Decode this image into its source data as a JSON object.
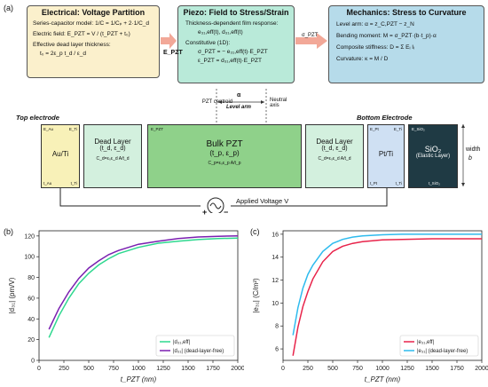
{
  "panel_a": {
    "label": "(a)",
    "electrical": {
      "title": "Electrical: Voltage Partition",
      "lines": [
        "Series-capacitor model: 1/C = 1/Cₚ + 2·1/C_d",
        "Electric field: E_PZT = V / (t_PZT + t₀)",
        "Effective dead layer thickness:",
        "t₀ = 2ε_p t_d / ε_d"
      ],
      "bg": "#fbf0cc"
    },
    "piezo": {
      "title": "Piezo: Field to Stress/Strain",
      "lines": [
        "Thickness-dependent film response:",
        "e₃₁,eff(t), d₃₁,eff(t)",
        "Constitutive (1D):",
        "σ_PZT = − e₃₁,eff(t)·E_PZT",
        "ε_PZT = d₃₁,eff(t)·E_PZT"
      ],
      "bg": "#b9ead9"
    },
    "mechanics": {
      "title": "Mechanics: Stress to Curvature",
      "lines": [
        "Level arm: α = z_C,PZT − z_N",
        "Bending moment: M = σ_PZT·(b·t_p)·α",
        "Composite stiffness: D = Σ Eᵢ Iᵢ",
        "Curvature: κ = M / D"
      ],
      "bg": "#b6dbea"
    },
    "arrow_labels": {
      "e_pzt": "E_PZT",
      "sigma_pzt": "σ_PZT"
    },
    "annotations": {
      "pzt_centroid": "PZT centroid",
      "alpha": "α",
      "level_arm": "Level arm",
      "neutral_axis": "Neutral axis",
      "top_electrode": "Top electrode",
      "bottom_electrode": "Bottom Electrode",
      "width": "width",
      "width_symbol": "b",
      "applied_voltage": "Applied Voltage V",
      "plus": "+",
      "minus": "−"
    },
    "layers": [
      {
        "name": "Au/Ti",
        "sub": "",
        "tl": "E_Au",
        "tr": "E_Ti",
        "bl": "t_Au",
        "br": "t_Ti",
        "color": "#f8f1b8"
      },
      {
        "name": "Dead Layer",
        "sub": "(t_d, ε_d)",
        "formula": "C_d=ε₀ε_d A/t_d",
        "color": "#d3f0de"
      },
      {
        "name": "Bulk PZT",
        "sub": "(t_p, ε_p)",
        "formula": "C_p=ε₀ε_p A/t_p",
        "tl": "E_PZT",
        "color": "#8fd18a"
      },
      {
        "name": "Dead Layer",
        "sub": "(t_d, ε_d)",
        "formula": "C_d=ε₀ε_d A/t_d",
        "color": "#d3f0de"
      },
      {
        "name": "Pt/Ti",
        "sub": "",
        "tl": "E_Pt",
        "tr": "E_Ti",
        "bl": "t_Pt",
        "br": "t_Ti",
        "color": "#cfe0f3"
      },
      {
        "name": "SiO₂",
        "sub": "(Elastic Layer)",
        "tl": "E_SiO₂",
        "bl": "t_SiO₂",
        "color": "#1f3a44"
      }
    ]
  },
  "chart_data": [
    {
      "type": "line",
      "panel": "(b)",
      "xlabel": "t_PZT (nm)",
      "ylabel": "|d₃₁| (pm/V)",
      "xlim": [
        0,
        2000
      ],
      "ylim": [
        0,
        125
      ],
      "xticks": [
        0,
        250,
        500,
        750,
        1000,
        1250,
        1500,
        1750,
        2000
      ],
      "yticks": [
        0,
        20,
        40,
        60,
        80,
        100,
        120
      ],
      "legend_position": "bottom-right",
      "series": [
        {
          "name": "|d₃₁,eff|",
          "color": "#2ed88f",
          "x": [
            100,
            200,
            300,
            400,
            500,
            600,
            700,
            800,
            900,
            1000,
            1200,
            1400,
            1600,
            1800,
            2000
          ],
          "y": [
            22,
            43,
            60,
            74,
            84,
            92,
            98,
            103,
            106,
            109,
            113,
            115,
            116.5,
            117.5,
            118
          ]
        },
        {
          "name": "|d₃₁| (dead-layer-free)",
          "color": "#7a1fb0",
          "x": [
            100,
            200,
            300,
            400,
            500,
            600,
            700,
            800,
            900,
            1000,
            1200,
            1400,
            1600,
            1800,
            2000
          ],
          "y": [
            30,
            50,
            66,
            79,
            89,
            96,
            102,
            106,
            109,
            112,
            115,
            117.5,
            119,
            119.7,
            120
          ]
        }
      ]
    },
    {
      "type": "line",
      "panel": "(c)",
      "xlabel": "t_PZT (nm)",
      "ylabel": "|e₃₁| (C/m²)",
      "xlim": [
        0,
        2000
      ],
      "ylim": [
        5,
        16.3
      ],
      "xticks": [
        0,
        250,
        500,
        750,
        1000,
        1250,
        1500,
        1750,
        2000
      ],
      "yticks": [
        6,
        8,
        10,
        12,
        14,
        16
      ],
      "legend_position": "bottom-right",
      "series": [
        {
          "name": "|e₃₁,eff|",
          "color": "#e8234a",
          "x": [
            100,
            150,
            200,
            250,
            300,
            400,
            500,
            600,
            700,
            800,
            1000,
            1200,
            1500,
            2000
          ],
          "y": [
            5.4,
            7.9,
            9.7,
            11.0,
            12.1,
            13.6,
            14.5,
            14.95,
            15.2,
            15.35,
            15.5,
            15.55,
            15.6,
            15.6
          ]
        },
        {
          "name": "|e₃₁| (dead-layer-free)",
          "color": "#2ebbee",
          "x": [
            100,
            150,
            200,
            250,
            300,
            400,
            500,
            600,
            700,
            800,
            1000,
            1200,
            1500,
            2000
          ],
          "y": [
            7.2,
            9.6,
            11.3,
            12.5,
            13.3,
            14.5,
            15.2,
            15.55,
            15.75,
            15.85,
            15.95,
            16.0,
            16.0,
            16.0
          ]
        }
      ]
    }
  ]
}
